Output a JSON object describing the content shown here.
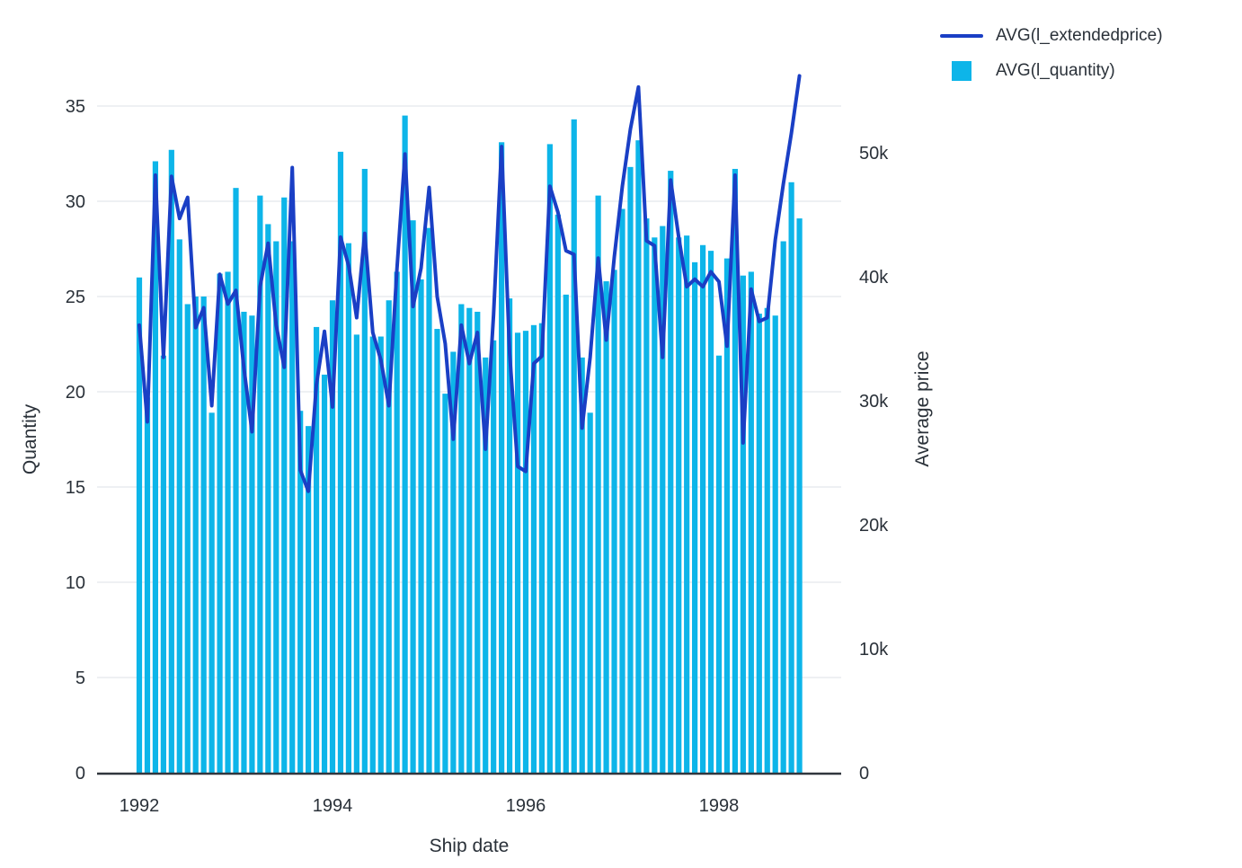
{
  "colors": {
    "bar": "#0db5e9",
    "line": "#1a3fc5",
    "grid": "#e9ebef",
    "axis_line": "#30363d",
    "text": "#2a3139"
  },
  "legend": {
    "items": [
      {
        "label": "AVG(l_extendedprice)",
        "swatch": "line",
        "color": "#1a3fc5"
      },
      {
        "label": "AVG(l_quantity)",
        "swatch": "square",
        "color": "#0db5e9"
      }
    ]
  },
  "chart_data": {
    "type": "combo",
    "title": "",
    "xlabel": "Ship date",
    "ylabel_left": "Quantity",
    "ylabel_right": "Average price",
    "ylim_left": [
      0,
      36.5
    ],
    "ylim_right": [
      0,
      56300
    ],
    "grid": "horizontal-left-axis-only",
    "legend_position": "top-right",
    "left_tick_values": [
      0,
      5,
      10,
      15,
      20,
      25,
      30,
      35
    ],
    "right_tick_values": [
      0,
      10000,
      20000,
      30000,
      40000,
      50000
    ],
    "right_tick_labels": [
      "0",
      "10k",
      "20k",
      "30k",
      "40k",
      "50k"
    ],
    "x_axis_tick_labels": [
      "1992",
      "1994",
      "1996",
      "1998"
    ],
    "x": [
      "1992-01",
      "1992-02",
      "1992-03",
      "1992-04",
      "1992-05",
      "1992-06",
      "1992-07",
      "1992-08",
      "1992-09",
      "1992-10",
      "1992-11",
      "1992-12",
      "1993-01",
      "1993-02",
      "1993-03",
      "1993-04",
      "1993-05",
      "1993-06",
      "1993-07",
      "1993-08",
      "1993-09",
      "1993-10",
      "1993-11",
      "1993-12",
      "1994-01",
      "1994-02",
      "1994-03",
      "1994-04",
      "1994-05",
      "1994-06",
      "1994-07",
      "1994-08",
      "1994-09",
      "1994-10",
      "1994-11",
      "1994-12",
      "1995-01",
      "1995-02",
      "1995-03",
      "1995-04",
      "1995-05",
      "1995-06",
      "1995-07",
      "1995-08",
      "1995-09",
      "1995-10",
      "1995-11",
      "1995-12",
      "1996-01",
      "1996-02",
      "1996-03",
      "1996-04",
      "1996-05",
      "1996-06",
      "1996-07",
      "1996-08",
      "1996-09",
      "1996-10",
      "1996-11",
      "1996-12",
      "1997-01",
      "1997-02",
      "1997-03",
      "1997-04",
      "1997-05",
      "1997-06",
      "1997-07",
      "1997-08",
      "1997-09",
      "1997-10",
      "1997-11",
      "1997-12",
      "1998-01",
      "1998-02",
      "1998-03",
      "1998-04",
      "1998-05",
      "1998-06",
      "1998-07",
      "1998-08",
      "1998-09",
      "1998-10",
      "1998-11"
    ],
    "series": [
      {
        "name": "AVG(l_quantity)",
        "type": "bar",
        "yaxis": "left",
        "color": "#0db5e9",
        "values": [
          26.0,
          19.7,
          32.1,
          21.9,
          32.7,
          28.0,
          24.6,
          25.0,
          25.0,
          18.9,
          26.2,
          26.3,
          30.7,
          24.2,
          24.0,
          30.3,
          28.8,
          27.9,
          30.2,
          27.9,
          19.0,
          18.2,
          23.4,
          20.9,
          24.8,
          32.6,
          27.8,
          23.0,
          31.7,
          22.9,
          22.9,
          24.8,
          26.3,
          34.5,
          29.0,
          25.9,
          28.6,
          23.3,
          19.9,
          22.1,
          24.6,
          24.4,
          24.2,
          21.8,
          22.7,
          33.1,
          24.9,
          23.1,
          23.2,
          23.5,
          23.6,
          33.0,
          29.3,
          25.1,
          34.3,
          21.8,
          18.9,
          30.3,
          25.8,
          26.4,
          29.6,
          31.8,
          33.2,
          29.1,
          28.1,
          28.7,
          31.6,
          28.1,
          28.2,
          26.8,
          27.7,
          27.4,
          21.9,
          27.0,
          31.7,
          26.1,
          26.3,
          24.1,
          24.4,
          24.0,
          27.9,
          31.0,
          29.1
        ]
      },
      {
        "name": "AVG(l_extendedprice)",
        "type": "line",
        "yaxis": "right",
        "color": "#1a3fc5",
        "values": [
          36100,
          28300,
          48200,
          33500,
          48100,
          44700,
          46400,
          35900,
          37500,
          29600,
          40200,
          37800,
          38900,
          32600,
          27500,
          39200,
          42700,
          36100,
          32700,
          48800,
          24400,
          22700,
          31300,
          35600,
          29500,
          43200,
          40900,
          36700,
          43500,
          35500,
          33300,
          29600,
          40600,
          49900,
          37600,
          40700,
          47200,
          38400,
          34600,
          26900,
          36100,
          33000,
          35500,
          26100,
          36900,
          50500,
          33800,
          24700,
          24300,
          33000,
          33600,
          47300,
          45200,
          42100,
          41800,
          27800,
          33500,
          41500,
          34900,
          41600,
          47300,
          51900,
          55300,
          42900,
          42500,
          33500,
          47800,
          43200,
          39200,
          39800,
          39200,
          40400,
          39600,
          34400,
          48200,
          26600,
          39000,
          36400,
          36700,
          43000,
          47500,
          51600,
          56200
        ]
      }
    ]
  }
}
